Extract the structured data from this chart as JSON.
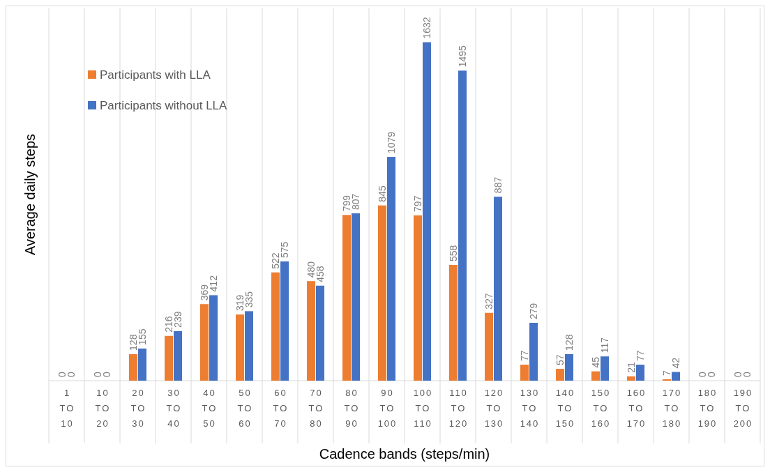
{
  "chart_data": {
    "type": "bar",
    "xlabel": "Cadence bands (steps/min)",
    "ylabel": "Average daily steps",
    "categories": [
      "1 TO 10",
      "10 TO 20",
      "20 TO 30",
      "30 TO 40",
      "40 TO 50",
      "50 TO 60",
      "60 TO 70",
      "70 TO 80",
      "80 TO 90",
      "90 TO 100",
      "100 TO 110",
      "110 TO 120",
      "120 TO 130",
      "130 TO 140",
      "140 TO 150",
      "150 TO 160",
      "160 TO 170",
      "170 TO 180",
      "180 TO 190",
      "190 TO 200"
    ],
    "series": [
      {
        "name": "Participants with LLA",
        "color": "#ed7d31",
        "values": [
          0,
          0,
          128,
          216,
          369,
          319,
          522,
          480,
          799,
          845,
          797,
          558,
          327,
          77,
          57,
          45,
          21,
          7,
          0,
          0
        ]
      },
      {
        "name": "Participants without LLA",
        "color": "#4472c4",
        "values": [
          0,
          0,
          155,
          239,
          412,
          335,
          575,
          458,
          807,
          1079,
          1632,
          1495,
          887,
          279,
          128,
          117,
          77,
          42,
          0,
          0
        ]
      }
    ],
    "data_labels": true,
    "grid": "x",
    "legend": "top left"
  }
}
